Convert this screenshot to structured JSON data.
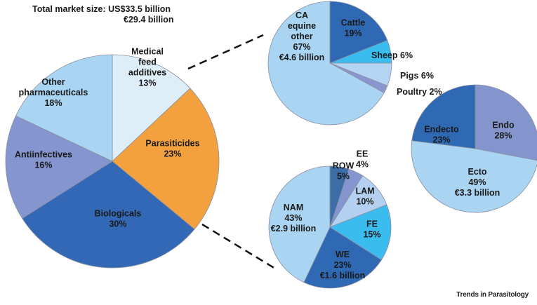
{
  "header": {
    "total_line1": "Total market size: US$33.5 billion",
    "total_line2": "€29.4 billion"
  },
  "credit": "Trends in Parasitology",
  "chart_data": [
    {
      "type": "pie",
      "slices": [
        {
          "label": [
            "Medical",
            "feed",
            "additives",
            "13%"
          ],
          "value": 13,
          "color": "#ddeef8"
        },
        {
          "label": [
            "Parasiticides",
            "23%"
          ],
          "value": 23,
          "color": "#f3a13f"
        },
        {
          "label": [
            "Biologicals",
            "30%"
          ],
          "value": 30,
          "color": "#3268b6"
        },
        {
          "label": [
            "Antiinfectives",
            "16%"
          ],
          "value": 16,
          "color": "#8595cf"
        },
        {
          "label": [
            "Other",
            "pharmaceuticals",
            "18%"
          ],
          "value": 18,
          "color": "#a9d4f2"
        }
      ]
    },
    {
      "type": "pie",
      "slices": [
        {
          "label": [
            "Cattle",
            "19%"
          ],
          "value": 19,
          "color": "#2f69b3"
        },
        {
          "label": [
            "Sheep 6%"
          ],
          "value": 6,
          "color": "#3bbcef"
        },
        {
          "label": [
            "Pigs 6%"
          ],
          "value": 6,
          "color": "#b4d4f3"
        },
        {
          "label": [
            "Poultry 2%"
          ],
          "value": 2,
          "color": "#8a96cf"
        },
        {
          "label": [
            "CA",
            "equine",
            "other",
            "67%",
            "€4.6 billion"
          ],
          "value": 67,
          "color": "#a9d4f2"
        }
      ]
    },
    {
      "type": "pie",
      "slices": [
        {
          "label": [
            "ROW",
            "5%"
          ],
          "value": 5,
          "color": "#3d6da6"
        },
        {
          "label": [
            "EE",
            "4%"
          ],
          "value": 4,
          "color": "#8595cf"
        },
        {
          "label": [
            "LAM",
            "10%"
          ],
          "value": 10,
          "color": "#b4d0f1"
        },
        {
          "label": [
            "FE",
            "15%"
          ],
          "value": 15,
          "color": "#3bbcef"
        },
        {
          "label": [
            "WE",
            "23%",
            "€1.6 billion"
          ],
          "value": 23,
          "color": "#2f69b3"
        },
        {
          "label": [
            "NAM",
            "43%",
            "€2.9 billion"
          ],
          "value": 43,
          "color": "#a9d4f2"
        }
      ]
    },
    {
      "type": "pie",
      "slices": [
        {
          "label": [
            "Endo",
            "28%"
          ],
          "value": 28,
          "color": "#8494cd"
        },
        {
          "label": [
            "Ecto",
            "49%",
            "€3.3 billion"
          ],
          "value": 49,
          "color": "#a9d4f2"
        },
        {
          "label": [
            "Endecto",
            "23%"
          ],
          "value": 23,
          "color": "#2f69b3"
        }
      ]
    }
  ]
}
